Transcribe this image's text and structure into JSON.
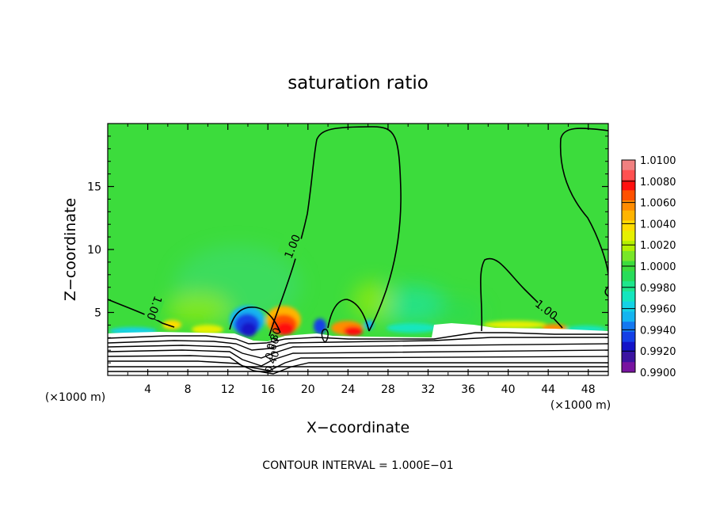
{
  "chart_data": {
    "type": "heatmap",
    "title": "saturation ratio",
    "xlabel": "X−coordinate",
    "ylabel": "Z−coordinate",
    "x_unit_left": "(×1000 m)",
    "x_unit_right": "(×1000 m)",
    "footer": "CONTOUR INTERVAL = 1.000E−01",
    "xlim": [
      0,
      50
    ],
    "ylim": [
      0,
      20
    ],
    "x_ticks": [
      4,
      8,
      12,
      16,
      20,
      24,
      28,
      32,
      36,
      40,
      44,
      48
    ],
    "x_tick_labels": [
      "4",
      "8",
      "12",
      "16",
      "20",
      "24",
      "28",
      "32",
      "36",
      "40",
      "44",
      "48"
    ],
    "y_ticks": [
      5,
      10,
      15
    ],
    "y_tick_labels": [
      "5",
      "10",
      "15"
    ],
    "colorbar": {
      "labels": [
        "1.0100",
        "1.0080",
        "1.0060",
        "1.0040",
        "1.0020",
        "1.0000",
        "0.9980",
        "0.9960",
        "0.9940",
        "0.9920",
        "0.9900"
      ],
      "levels": [
        1.01,
        1.009,
        1.008,
        1.007,
        1.006,
        1.005,
        1.004,
        1.003,
        1.002,
        1.001,
        1.0,
        0.999,
        0.998,
        0.997,
        0.996,
        0.995,
        0.994,
        0.993,
        0.992,
        0.991,
        0.99
      ],
      "colors": [
        "#f08080",
        "#ff5050",
        "#ff1010",
        "#ff5000",
        "#ff8c00",
        "#ffb400",
        "#ffdc00",
        "#e6f000",
        "#b4f000",
        "#78e628",
        "#3cdc3c",
        "#28dc5a",
        "#1ee68c",
        "#14e6be",
        "#14d2e6",
        "#14b4f0",
        "#1478f0",
        "#1440e6",
        "#1414c8",
        "#3c14a0",
        "#7814a0"
      ]
    },
    "contour_labels": [
      "1.00",
      "1.00",
      "1.00",
      "0.40",
      "0.60",
      "0.80"
    ],
    "background_value": 1.0
  }
}
